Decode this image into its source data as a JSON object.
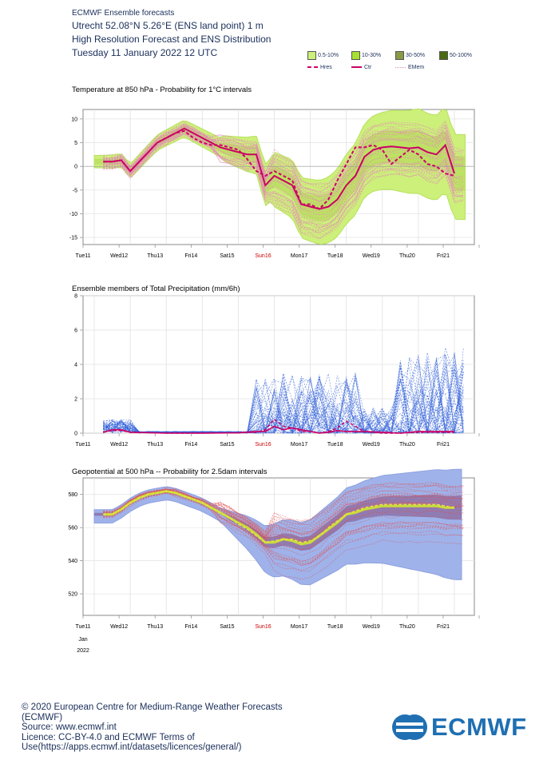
{
  "header": {
    "line0": "ECMWF Ensemble forecasts",
    "line1": "Utrecht 52.08°N 5.26°E (ENS land point) 1 m",
    "line2": "High Resolution Forecast and ENS Distribution",
    "line3": "Tuesday 11 January 2022 12 UTC"
  },
  "legend": {
    "boxes": [
      {
        "label": "0.5-10%",
        "color": "#ccf07a"
      },
      {
        "label": "10-30%",
        "color": "#a6e22e"
      },
      {
        "label": "30-50%",
        "color": "#889a45"
      },
      {
        "label": "50-100%",
        "color": "#4a6a12"
      }
    ],
    "lines": [
      {
        "label": "Hres",
        "color": "#cc0066",
        "style": "dashed"
      },
      {
        "label": "Ctr",
        "color": "#cc0066",
        "style": "solid"
      },
      {
        "label": "EMem",
        "color": "#f0a0c8",
        "style": "dotted"
      }
    ]
  },
  "days": [
    "Tue11",
    "Wed12",
    "Thu13",
    "Fri14",
    "Sat15",
    "Sun16",
    "Mon17",
    "Tue18",
    "Wed19",
    "Thu20",
    "Fri21"
  ],
  "day_colors": {
    "Sun16": "#cc0000"
  },
  "x_extra": {
    "month": "Jan",
    "year": "2022"
  },
  "chart_data": [
    {
      "type": "line",
      "title": "Temperature at 850 hPa - Probability for 1°C intervals",
      "yticks": [
        10,
        5,
        0,
        -5,
        -10,
        -15
      ],
      "ylim": [
        -16.5,
        12
      ],
      "x_unit": "days since Tue11 00 UTC",
      "series": [
        {
          "name": "Ctr",
          "x": [
            0.25,
            0.5,
            0.75,
            1.0,
            1.25,
            1.5,
            1.75,
            2.0,
            2.25,
            2.5,
            2.75,
            3.0,
            3.25,
            3.5,
            3.75,
            4.0,
            4.25,
            4.5,
            4.75,
            5.0,
            5.25,
            5.5,
            5.75,
            6.0,
            6.25,
            6.5,
            6.75,
            7.0,
            7.25,
            7.5,
            7.75,
            8.0,
            8.25,
            8.5,
            8.75,
            9.0,
            9.25,
            9.5,
            9.75,
            10.0
          ],
          "values": [
            1.0,
            1.0,
            1.3,
            -1.0,
            1.0,
            3.0,
            5.0,
            6.0,
            7.0,
            8.0,
            7.0,
            6.0,
            5.0,
            4.0,
            3.5,
            3.0,
            2.5,
            2.5,
            -4.0,
            -2.0,
            -3.0,
            -4.0,
            -8.0,
            -8.5,
            -9.0,
            -8.5,
            -7.0,
            -4.0,
            -2.0,
            2.0,
            3.5,
            4.0,
            4.2,
            4.0,
            3.8,
            4.0,
            3.0,
            2.5,
            4.5,
            -1.5
          ]
        },
        {
          "name": "Hres",
          "x": [
            0.25,
            0.5,
            0.75,
            1.0,
            1.25,
            1.5,
            1.75,
            2.0,
            2.25,
            2.5,
            2.75,
            3.0,
            3.25,
            3.5,
            3.75,
            4.0,
            4.25,
            4.5,
            4.75,
            5.0,
            5.25,
            5.5,
            5.75,
            6.0,
            6.25,
            6.5,
            6.75,
            7.0,
            7.25,
            7.5,
            7.75,
            8.0,
            8.25,
            8.5,
            8.75,
            9.0,
            9.25,
            9.5,
            9.75,
            10.0
          ],
          "values": [
            1.0,
            1.0,
            1.3,
            -1.0,
            1.0,
            3.0,
            5.0,
            6.0,
            7.0,
            7.5,
            6.0,
            5.0,
            4.5,
            4.5,
            4.0,
            3.5,
            1.5,
            -1.0,
            -2.0,
            -1.0,
            -2.0,
            -3.0,
            -8.0,
            -8.0,
            -9.0,
            -7.0,
            -3.0,
            0.5,
            4.0,
            4.0,
            4.5,
            3.5,
            0.5,
            2.0,
            3.5,
            2.5,
            0.5,
            0.0,
            -1.5,
            -2.0
          ]
        }
      ]
    },
    {
      "type": "line",
      "title": "Ensemble members of Total Precipitation (mm/6h)",
      "yticks": [
        8,
        6,
        4,
        2,
        0
      ],
      "ylim": [
        0,
        8
      ],
      "series": [
        {
          "name": "Ctr",
          "x": [
            0.25,
            0.5,
            0.75,
            1.0,
            2.0,
            3.0,
            4.0,
            4.5,
            4.75,
            5.0,
            5.25,
            5.5,
            5.75,
            6.0,
            6.25,
            6.5,
            6.75,
            7.0,
            7.5,
            8.0,
            8.5,
            9.0,
            9.5,
            10.0
          ],
          "values": [
            0.05,
            0.2,
            0.2,
            0.05,
            0.0,
            0.0,
            0.02,
            0.1,
            0.1,
            0.4,
            0.2,
            0.3,
            0.2,
            0.1,
            0.0,
            0.05,
            0.15,
            0.1,
            0.1,
            0.05,
            0.0,
            0.1,
            0.1,
            0.1
          ]
        },
        {
          "name": "Hres",
          "x": [
            0.25,
            0.5,
            0.75,
            1.0,
            2.0,
            3.0,
            4.0,
            4.5,
            4.75,
            5.0,
            5.25,
            5.5,
            5.75,
            6.0,
            6.25,
            6.5,
            6.75,
            7.0,
            7.5,
            8.0,
            8.5,
            9.0,
            9.5,
            10.0
          ],
          "values": [
            0.05,
            0.15,
            0.15,
            0.05,
            0.0,
            0.0,
            0.02,
            0.05,
            0.2,
            0.8,
            0.4,
            0.3,
            0.1,
            0.1,
            0.0,
            0.1,
            0.3,
            0.7,
            0.1,
            0.0,
            0.0,
            0.05,
            0.05,
            0.05
          ]
        }
      ]
    },
    {
      "type": "line",
      "title": "Geopotential at 500 hPa -- Probability for 2.5dam intervals",
      "yticks": [
        580,
        560,
        540,
        520
      ],
      "ylim": [
        507,
        590
      ],
      "series": [
        {
          "name": "Ctr",
          "x": [
            0.25,
            0.5,
            0.75,
            1.0,
            1.25,
            1.5,
            1.75,
            2.0,
            2.25,
            2.5,
            2.75,
            3.0,
            3.25,
            3.5,
            3.75,
            4.0,
            4.25,
            4.5,
            4.75,
            5.0,
            5.25,
            5.5,
            5.75,
            6.0,
            6.25,
            6.5,
            6.75,
            7.0,
            7.25,
            7.5,
            7.75,
            8.0,
            8.25,
            8.5,
            8.75,
            9.0,
            9.25,
            9.5,
            9.75,
            10.0
          ],
          "values": [
            568,
            568,
            571,
            575,
            578,
            580,
            581,
            582,
            581,
            579,
            577,
            575,
            572,
            569,
            566,
            563,
            560,
            556,
            551,
            551,
            553,
            552,
            550,
            551,
            555,
            559,
            563,
            568,
            569,
            571,
            572,
            573,
            573,
            573,
            573,
            573,
            573,
            573,
            572,
            572
          ]
        },
        {
          "name": "Hres",
          "x": [
            0.25,
            0.5,
            0.75,
            1.0,
            1.25,
            1.5,
            1.75,
            2.0,
            2.25,
            2.5,
            2.75,
            3.0,
            3.25,
            3.5,
            3.75,
            4.0,
            4.25,
            4.5,
            4.75,
            5.0,
            5.25,
            5.5,
            5.75,
            6.0,
            6.25,
            6.5,
            6.75,
            7.0,
            7.25,
            7.5,
            7.75,
            8.0,
            8.25,
            8.5,
            8.75,
            9.0,
            9.25,
            9.5,
            9.75,
            10.0
          ],
          "values": [
            568,
            568,
            571,
            575,
            578,
            580,
            581,
            582,
            581,
            579,
            577,
            575,
            572,
            569,
            566,
            562,
            559,
            555,
            551,
            552,
            553,
            553,
            551,
            552,
            555,
            560,
            564,
            568,
            570,
            572,
            573,
            574,
            574,
            574,
            574,
            574,
            574,
            574,
            573,
            572
          ]
        }
      ]
    }
  ],
  "footer": {
    "line1": "© 2020 European Centre for Medium-Range Weather Forecasts",
    "line2": "(ECMWF)",
    "line3": "Source: www.ecmwf.int",
    "line4": "Licence: CC-BY-4.0 and ECMWF Terms of",
    "line5": "Use(https://apps.ecmwf.int/datasets/licences/general/)",
    "logo_text": "ECMWF"
  }
}
